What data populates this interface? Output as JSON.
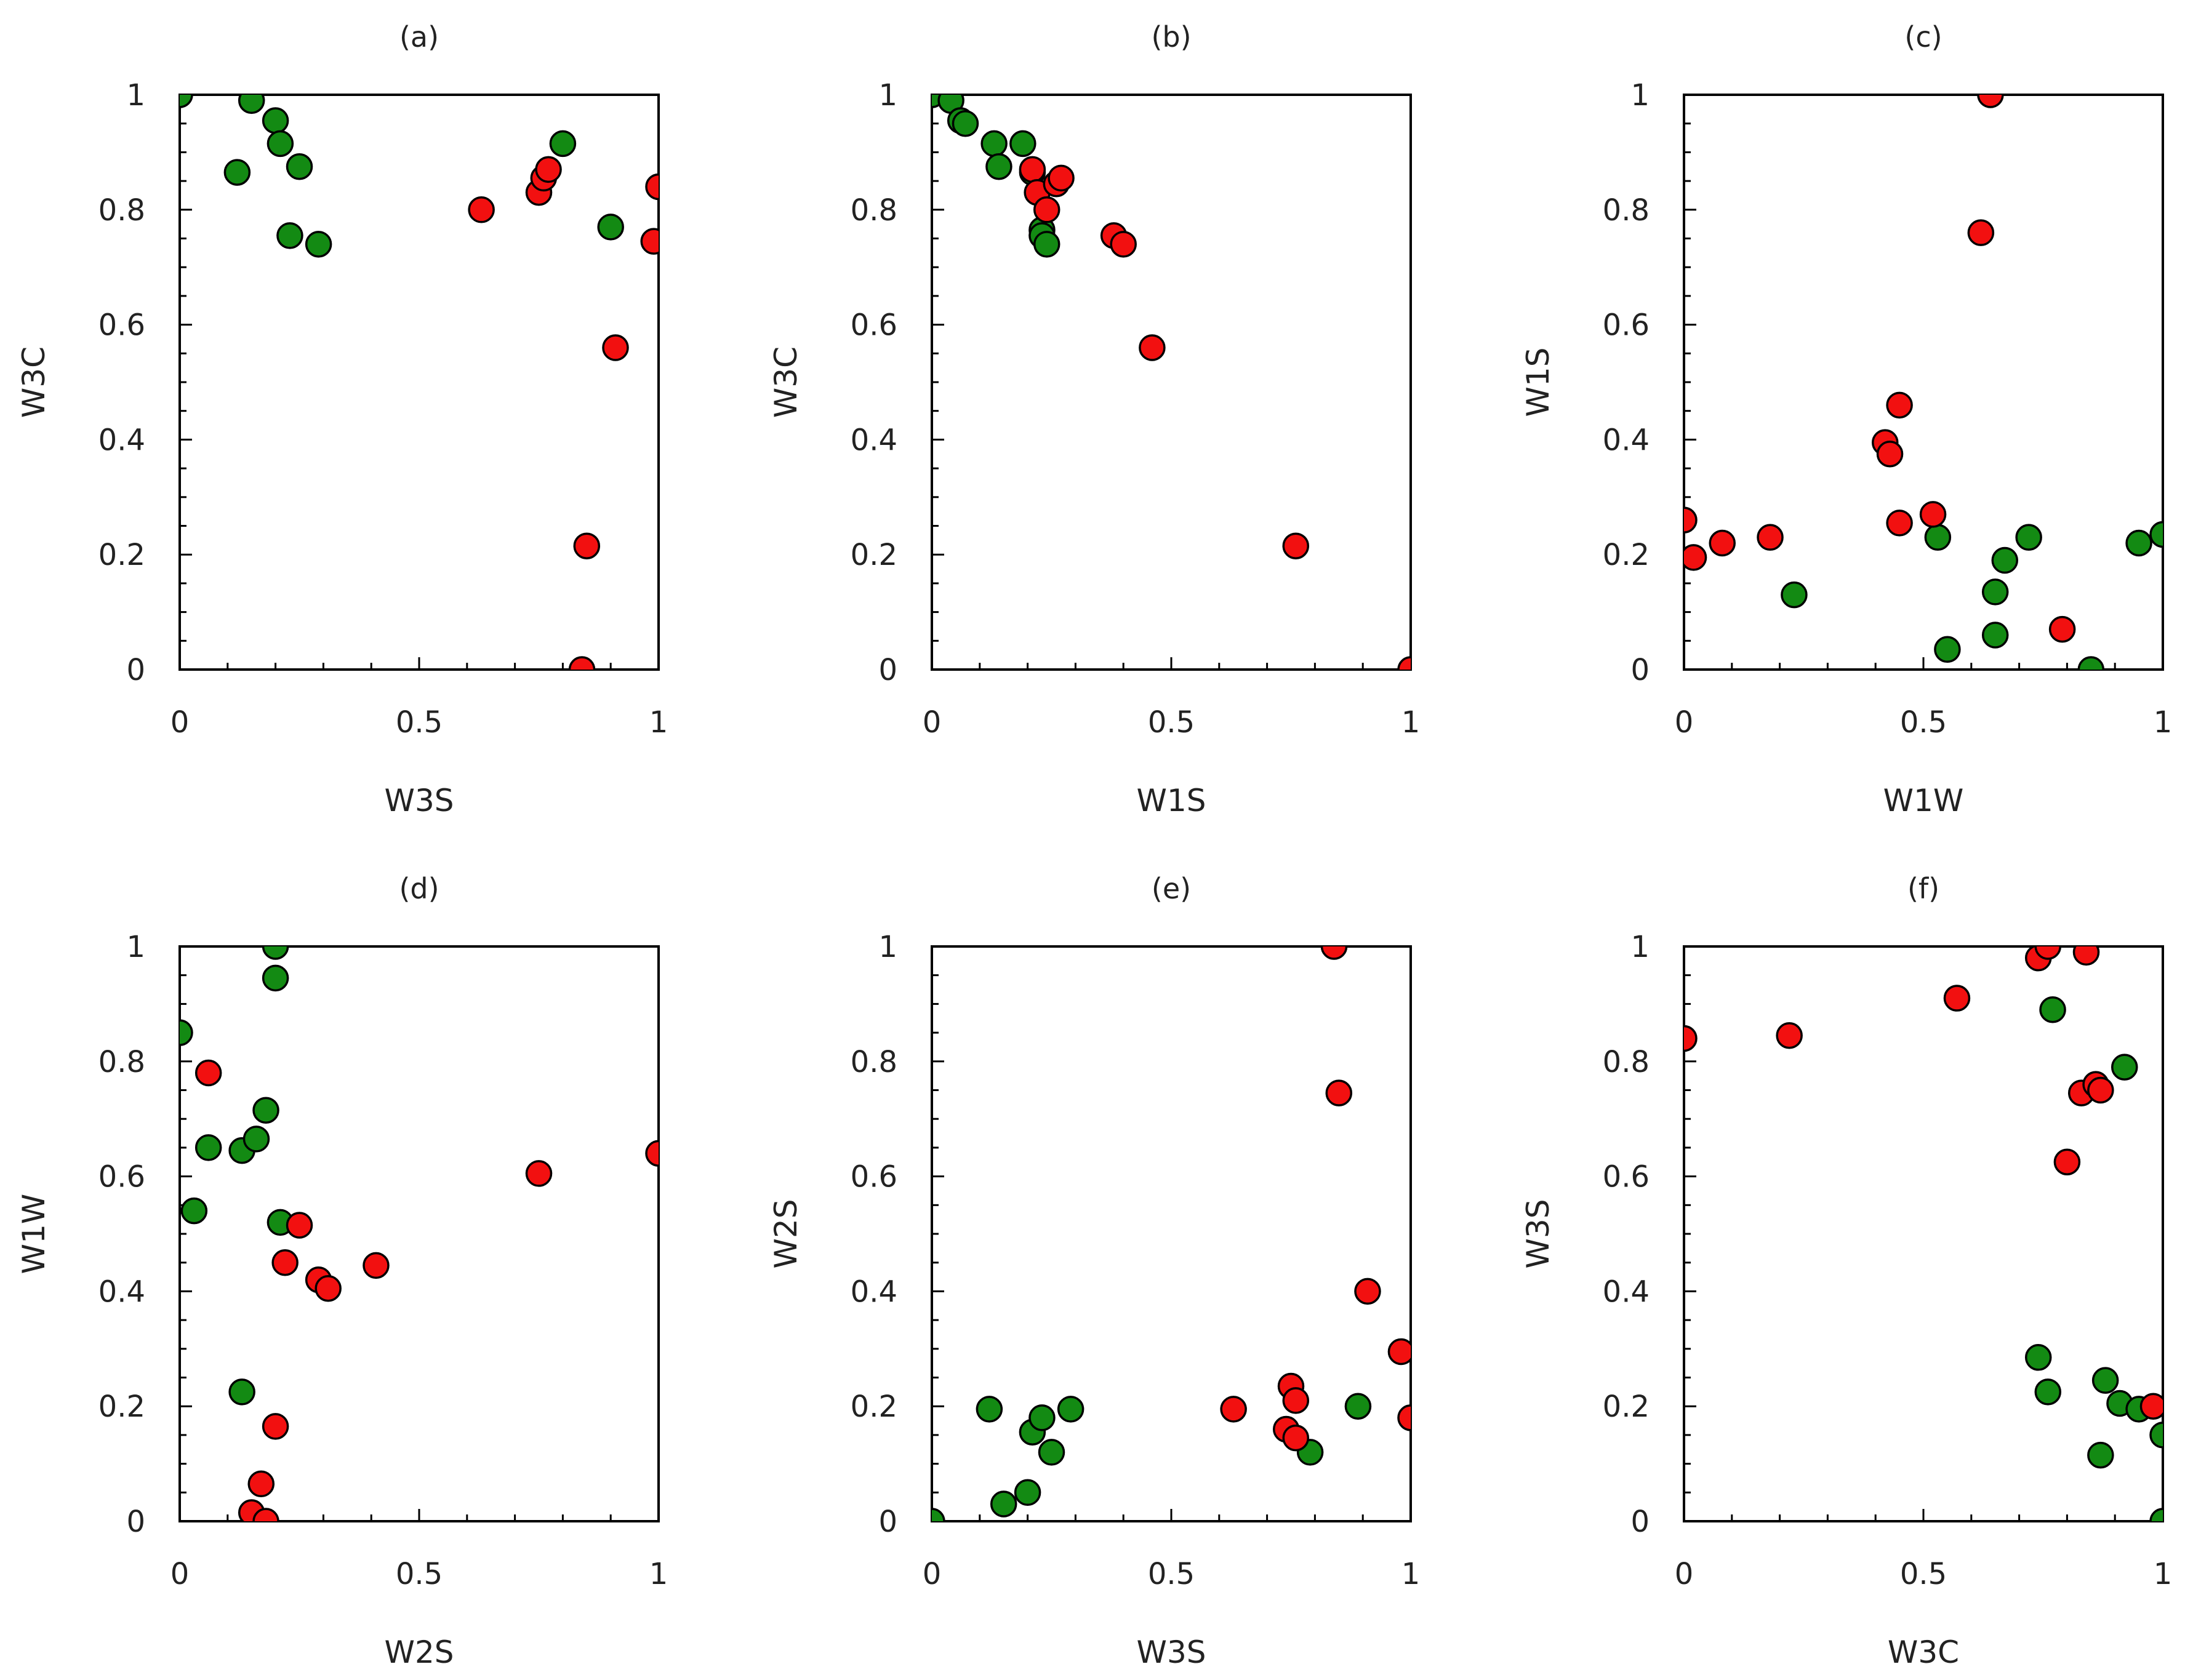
{
  "colors": {
    "green": "#138a13",
    "red": "#f21010"
  },
  "chart_data": [
    {
      "type": "scatter",
      "title": "(a)",
      "xlabel": "W3S",
      "ylabel": "W3C",
      "xlim": [
        0,
        1
      ],
      "ylim": [
        0,
        1
      ],
      "xticks": [
        0,
        0.5,
        1
      ],
      "yticks": [
        0,
        0.2,
        0.4,
        0.6,
        0.8,
        1
      ],
      "x_tick_labels": [
        "0",
        "0.5",
        "1"
      ],
      "y_tick_labels": [
        "0",
        "0.2",
        "0.4",
        "0.6",
        "0.8",
        "1"
      ],
      "grid": false,
      "series": [
        {
          "name": "green",
          "color": "#138a13",
          "x": [
            0.0,
            0.15,
            0.2,
            0.21,
            0.12,
            0.25,
            0.23,
            0.29,
            0.8,
            0.9
          ],
          "y": [
            1.0,
            0.99,
            0.955,
            0.915,
            0.865,
            0.875,
            0.755,
            0.74,
            0.915,
            0.77
          ]
        },
        {
          "name": "red",
          "color": "#f21010",
          "x": [
            0.63,
            0.75,
            0.76,
            0.77,
            0.99,
            1.0,
            0.91,
            0.85,
            0.84
          ],
          "y": [
            0.8,
            0.83,
            0.855,
            0.87,
            0.745,
            0.84,
            0.56,
            0.215,
            0.0
          ]
        }
      ]
    },
    {
      "type": "scatter",
      "title": "(b)",
      "xlabel": "W1S",
      "ylabel": "W3C",
      "xlim": [
        0,
        1
      ],
      "ylim": [
        0,
        1
      ],
      "xticks": [
        0,
        0.5,
        1
      ],
      "yticks": [
        0,
        0.2,
        0.4,
        0.6,
        0.8,
        1
      ],
      "x_tick_labels": [
        "0",
        "0.5",
        "1"
      ],
      "y_tick_labels": [
        "0",
        "0.2",
        "0.4",
        "0.6",
        "0.8",
        "1"
      ],
      "grid": false,
      "series": [
        {
          "name": "green",
          "color": "#138a13",
          "x": [
            0.0,
            0.04,
            0.06,
            0.07,
            0.13,
            0.14,
            0.19,
            0.21,
            0.23,
            0.23,
            0.24
          ],
          "y": [
            1.0,
            0.99,
            0.955,
            0.95,
            0.915,
            0.875,
            0.915,
            0.865,
            0.765,
            0.755,
            0.74
          ]
        },
        {
          "name": "red",
          "color": "#f21010",
          "x": [
            0.21,
            0.22,
            0.24,
            0.26,
            0.27,
            0.38,
            0.4,
            0.46,
            0.76,
            1.0
          ],
          "y": [
            0.87,
            0.83,
            0.8,
            0.845,
            0.855,
            0.755,
            0.74,
            0.56,
            0.215,
            0.0
          ]
        }
      ]
    },
    {
      "type": "scatter",
      "title": "(c)",
      "xlabel": "W1W",
      "ylabel": "W1S",
      "xlim": [
        0,
        1
      ],
      "ylim": [
        0,
        1
      ],
      "xticks": [
        0,
        0.5,
        1
      ],
      "yticks": [
        0,
        0.2,
        0.4,
        0.6,
        0.8,
        1
      ],
      "x_tick_labels": [
        "0",
        "0.5",
        "1"
      ],
      "y_tick_labels": [
        "0",
        "0.2",
        "0.4",
        "0.6",
        "0.8",
        "1"
      ],
      "grid": false,
      "series": [
        {
          "name": "green",
          "color": "#138a13",
          "x": [
            0.23,
            0.53,
            0.55,
            0.65,
            0.65,
            0.67,
            0.72,
            0.85,
            0.95,
            1.0
          ],
          "y": [
            0.13,
            0.23,
            0.035,
            0.135,
            0.06,
            0.19,
            0.23,
            0.0,
            0.22,
            0.235
          ]
        },
        {
          "name": "red",
          "color": "#f21010",
          "x": [
            0.0,
            0.02,
            0.08,
            0.18,
            0.42,
            0.43,
            0.45,
            0.45,
            0.52,
            0.62,
            0.64,
            0.79
          ],
          "y": [
            0.26,
            0.195,
            0.22,
            0.23,
            0.395,
            0.375,
            0.46,
            0.255,
            0.27,
            0.76,
            1.0,
            0.07
          ]
        }
      ]
    },
    {
      "type": "scatter",
      "title": "(d)",
      "xlabel": "W2S",
      "ylabel": "W1W",
      "xlim": [
        0,
        1
      ],
      "ylim": [
        0,
        1
      ],
      "xticks": [
        0,
        0.5,
        1
      ],
      "yticks": [
        0,
        0.2,
        0.4,
        0.6,
        0.8,
        1
      ],
      "x_tick_labels": [
        "0",
        "0.5",
        "1"
      ],
      "y_tick_labels": [
        "0",
        "0.2",
        "0.4",
        "0.6",
        "0.8",
        "1"
      ],
      "grid": false,
      "series": [
        {
          "name": "green",
          "color": "#138a13",
          "x": [
            0.0,
            0.03,
            0.06,
            0.13,
            0.16,
            0.18,
            0.2,
            0.2,
            0.21,
            0.13
          ],
          "y": [
            0.85,
            0.54,
            0.65,
            0.645,
            0.665,
            0.715,
            1.0,
            0.945,
            0.52,
            0.225
          ]
        },
        {
          "name": "red",
          "color": "#f21010",
          "x": [
            0.06,
            0.25,
            0.22,
            0.29,
            0.31,
            0.41,
            0.75,
            1.0,
            0.2,
            0.17,
            0.15,
            0.18
          ],
          "y": [
            0.78,
            0.515,
            0.45,
            0.42,
            0.405,
            0.445,
            0.605,
            0.64,
            0.165,
            0.065,
            0.015,
            0.0
          ]
        }
      ]
    },
    {
      "type": "scatter",
      "title": "(e)",
      "xlabel": "W3S",
      "ylabel": "W2S",
      "xlim": [
        0,
        1
      ],
      "ylim": [
        0,
        1
      ],
      "xticks": [
        0,
        0.5,
        1
      ],
      "yticks": [
        0,
        0.2,
        0.4,
        0.6,
        0.8,
        1
      ],
      "x_tick_labels": [
        "0",
        "0.5",
        "1"
      ],
      "y_tick_labels": [
        "0",
        "0.2",
        "0.4",
        "0.6",
        "0.8",
        "1"
      ],
      "grid": false,
      "series": [
        {
          "name": "green",
          "color": "#138a13",
          "x": [
            0.0,
            0.15,
            0.12,
            0.2,
            0.21,
            0.23,
            0.25,
            0.29,
            0.79,
            0.89
          ],
          "y": [
            0.0,
            0.03,
            0.195,
            0.05,
            0.155,
            0.18,
            0.12,
            0.195,
            0.12,
            0.2
          ]
        },
        {
          "name": "red",
          "color": "#f21010",
          "x": [
            0.63,
            0.74,
            0.75,
            0.76,
            0.76,
            0.84,
            0.85,
            0.91,
            0.98,
            1.0
          ],
          "y": [
            0.195,
            0.16,
            0.235,
            0.21,
            0.145,
            1.0,
            0.745,
            0.4,
            0.295,
            0.18
          ]
        }
      ]
    },
    {
      "type": "scatter",
      "title": "(f)",
      "xlabel": "W3C",
      "ylabel": "W3S",
      "xlim": [
        0,
        1
      ],
      "ylim": [
        0,
        1
      ],
      "xticks": [
        0,
        0.5,
        1
      ],
      "yticks": [
        0,
        0.2,
        0.4,
        0.6,
        0.8,
        1
      ],
      "x_tick_labels": [
        "0",
        "0.5",
        "1"
      ],
      "y_tick_labels": [
        "0",
        "0.2",
        "0.4",
        "0.6",
        "0.8",
        "1"
      ],
      "grid": false,
      "series": [
        {
          "name": "green",
          "color": "#138a13",
          "x": [
            0.77,
            0.92,
            0.74,
            0.76,
            0.88,
            0.91,
            0.95,
            1.0,
            0.87,
            1.0
          ],
          "y": [
            0.89,
            0.79,
            0.285,
            0.225,
            0.245,
            0.205,
            0.195,
            0.15,
            0.115,
            0.0
          ]
        },
        {
          "name": "red",
          "color": "#f21010",
          "x": [
            0.0,
            0.22,
            0.57,
            0.74,
            0.76,
            0.84,
            0.83,
            0.86,
            0.87,
            0.8,
            0.98
          ],
          "y": [
            0.84,
            0.845,
            0.91,
            0.98,
            1.0,
            0.99,
            0.745,
            0.76,
            0.75,
            0.625,
            0.2
          ]
        }
      ]
    }
  ]
}
